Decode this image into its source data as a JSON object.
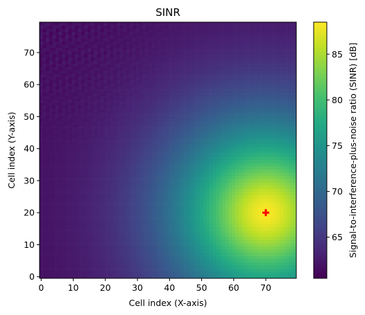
{
  "chart_data": {
    "type": "heatmap",
    "title": "SINR",
    "xlabel": "Cell index (X-axis)",
    "ylabel": "Cell index (Y-axis)",
    "colorbar_label": "Signal-to-interference-plus-noise ratio (SINR) [dB]",
    "colormap": "viridis",
    "grid": false,
    "xlim": [
      -0.5,
      79.5
    ],
    "ylim": [
      -0.5,
      79.5
    ],
    "x_ticks": [
      0,
      10,
      20,
      30,
      40,
      50,
      60,
      70
    ],
    "y_ticks": [
      0,
      10,
      20,
      30,
      40,
      50,
      60,
      70
    ],
    "colorbar_range": [
      60.5,
      88.5
    ],
    "colorbar_ticks": [
      65,
      70,
      75,
      80,
      85
    ],
    "grid_size": [
      80,
      80
    ],
    "transmitter": {
      "x": 70,
      "y": 20,
      "marker": "plus",
      "color": "#ff0000"
    },
    "peak_sinr_db": 88.5,
    "min_sinr_db": 60.5
  }
}
